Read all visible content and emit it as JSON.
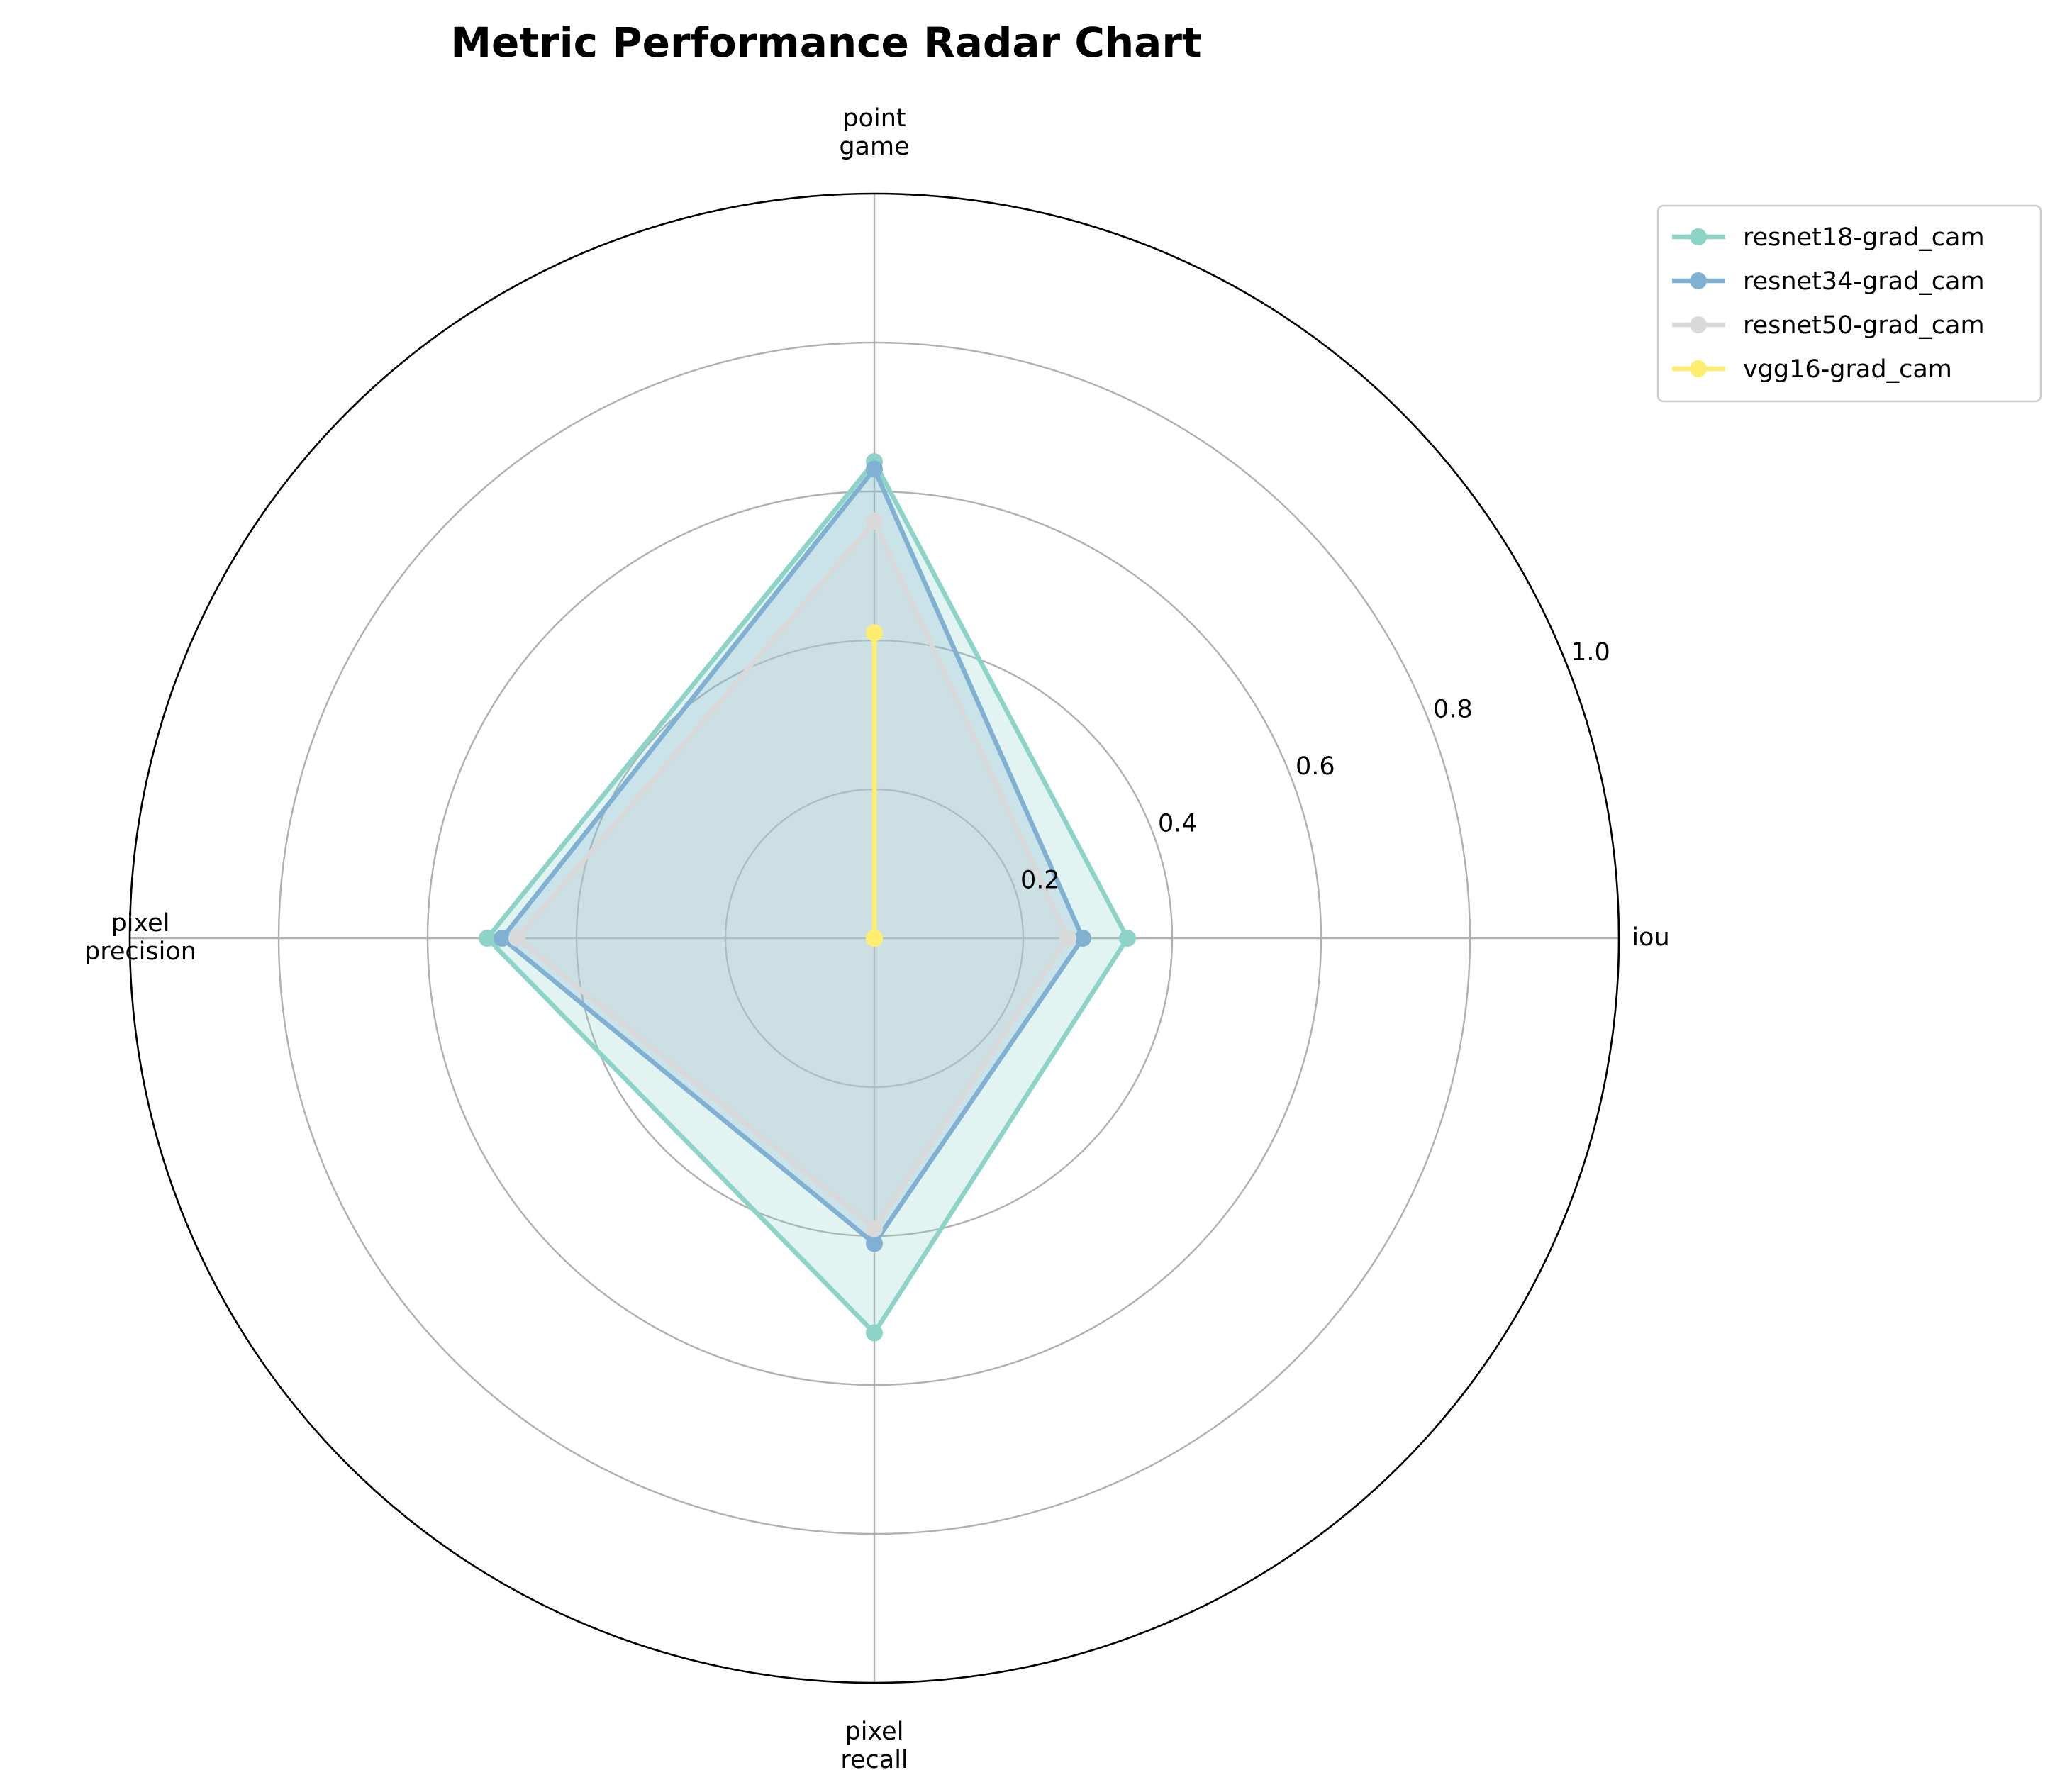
{
  "chart_data": {
    "type": "radar",
    "title": "Metric Performance Radar Chart",
    "axes": [
      [
        "iou"
      ],
      [
        "point",
        "game"
      ],
      [
        "pixel",
        "precision"
      ],
      [
        "pixel",
        "recall"
      ]
    ],
    "rlim": [
      0,
      1.0
    ],
    "rticks": [
      0.2,
      0.4,
      0.6,
      0.8,
      1.0
    ],
    "rtick_labels": [
      "0.2",
      "0.4",
      "0.6",
      "0.8",
      "1.0"
    ],
    "grid": true,
    "legend_position": "top-right",
    "series": [
      {
        "name": "resnet18-grad_cam",
        "color": "#8dd3c7",
        "values": [
          0.34,
          0.64,
          0.52,
          0.53
        ],
        "filled": true
      },
      {
        "name": "resnet34-grad_cam",
        "color": "#80b1d3",
        "values": [
          0.28,
          0.63,
          0.5,
          0.41
        ],
        "filled": true
      },
      {
        "name": "resnet50-grad_cam",
        "color": "#d9d9d9",
        "values": [
          0.26,
          0.56,
          0.48,
          0.39
        ],
        "filled": true
      },
      {
        "name": "vgg16-grad_cam",
        "color": "#ffed6f",
        "values": [
          0.0,
          0.41,
          0.0,
          0.0
        ],
        "filled": false
      }
    ]
  }
}
